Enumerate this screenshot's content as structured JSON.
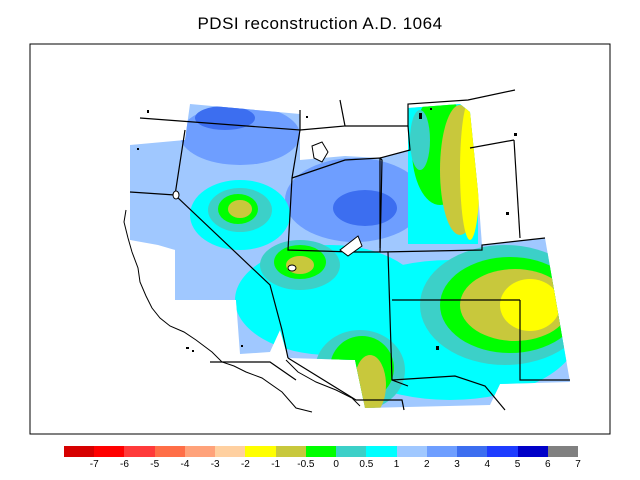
{
  "title": "PDSI reconstruction A.D. 1064",
  "legend": {
    "colors": [
      "#d60000",
      "#ff0000",
      "#ff3a3a",
      "#ff6e47",
      "#ffa27a",
      "#ffd0a0",
      "#ffff00",
      "#c8c83c",
      "#00ff00",
      "#3cd0c8",
      "#00ffff",
      "#a0c8ff",
      "#6e9eff",
      "#3c6ef0",
      "#1e3cff",
      "#0000c8",
      "#808080"
    ],
    "ticks": [
      "-7",
      "-6",
      "-5",
      "-4",
      "-3",
      "-2",
      "-1",
      "-0.5",
      "0",
      "0.5",
      "1",
      "2",
      "3",
      "4",
      "5",
      "6",
      "7"
    ]
  }
}
